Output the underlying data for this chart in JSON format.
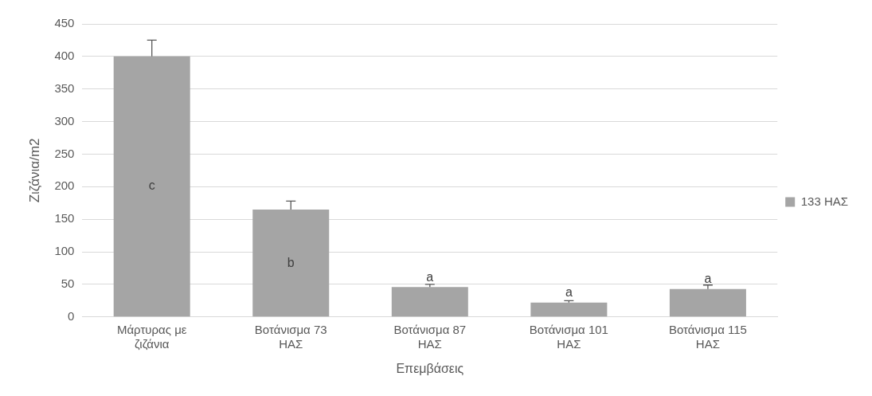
{
  "chart_data": {
    "type": "bar",
    "xlabel": "Επεμβάσεις",
    "ylabel": "Ζιζάνια/m2",
    "categories": [
      "Μάρτυρας με ζιζάνια",
      "Βοτάνισμα 73 ΗΑΣ",
      "Βοτάνισμα 87 ΗΑΣ",
      "Βοτάνισμα 101 ΗΑΣ",
      "Βοτάνισμα 115 ΗΑΣ"
    ],
    "series": [
      {
        "name": "133 ΗΑΣ",
        "color": "#a5a5a5",
        "values": [
          400,
          165,
          46,
          22,
          43
        ],
        "errors": [
          [
            400,
            425
          ],
          [
            165,
            178
          ],
          [
            46,
            50
          ],
          [
            22,
            25
          ],
          [
            43,
            49
          ]
        ],
        "value_labels": [
          "c",
          "b",
          "a",
          "a",
          "a"
        ]
      }
    ],
    "ylim": [
      0,
      450
    ],
    "yticks": [
      0,
      50,
      100,
      150,
      200,
      250,
      300,
      350,
      400,
      450
    ],
    "grid": "y",
    "legend": "right"
  }
}
